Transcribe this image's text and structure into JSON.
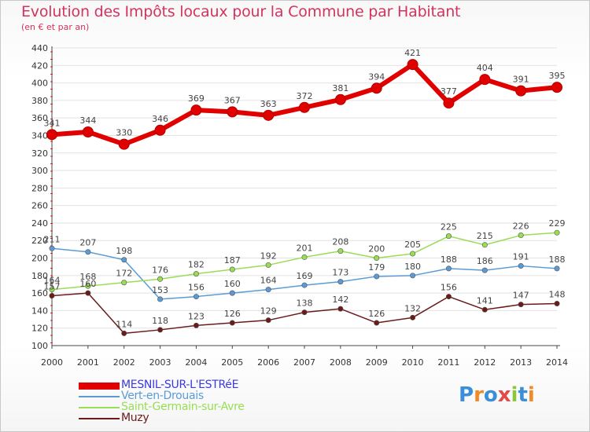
{
  "chart_data": {
    "type": "line",
    "title": "Evolution des Impôts locaux pour la Commune par Habitant",
    "subtitle": "(en € et par an)",
    "xlabel": "",
    "ylabel": "",
    "x": [
      2000,
      2001,
      2002,
      2003,
      2004,
      2005,
      2006,
      2007,
      2008,
      2009,
      2010,
      2011,
      2012,
      2013,
      2014
    ],
    "ylim": [
      100,
      440
    ],
    "yticks": [
      100,
      120,
      140,
      160,
      180,
      200,
      220,
      240,
      260,
      280,
      300,
      320,
      340,
      360,
      380,
      400,
      420,
      440
    ],
    "grid": true,
    "legend_position": "bottom-left",
    "series": [
      {
        "name": "MESNIL-SUR-L'ESTRéE",
        "color": "#e00000",
        "values": [
          341,
          344,
          330,
          346,
          369,
          367,
          363,
          372,
          381,
          394,
          421,
          377,
          404,
          391,
          395
        ]
      },
      {
        "name": "Vert-en-Drouais",
        "color": "#5b9bd5",
        "values": [
          211,
          207,
          198,
          153,
          156,
          160,
          164,
          169,
          173,
          179,
          180,
          188,
          186,
          191,
          188
        ]
      },
      {
        "name": "Saint-Germain-sur-Avre",
        "color": "#99dd55",
        "values": [
          164,
          168,
          172,
          176,
          182,
          187,
          192,
          201,
          208,
          200,
          205,
          225,
          215,
          226,
          229
        ]
      },
      {
        "name": "Muzy",
        "color": "#6b1a1a",
        "values": [
          157,
          160,
          114,
          118,
          123,
          126,
          129,
          138,
          142,
          126,
          132,
          156,
          141,
          147,
          148
        ]
      }
    ]
  },
  "logo": {
    "text": "Proxiti"
  }
}
